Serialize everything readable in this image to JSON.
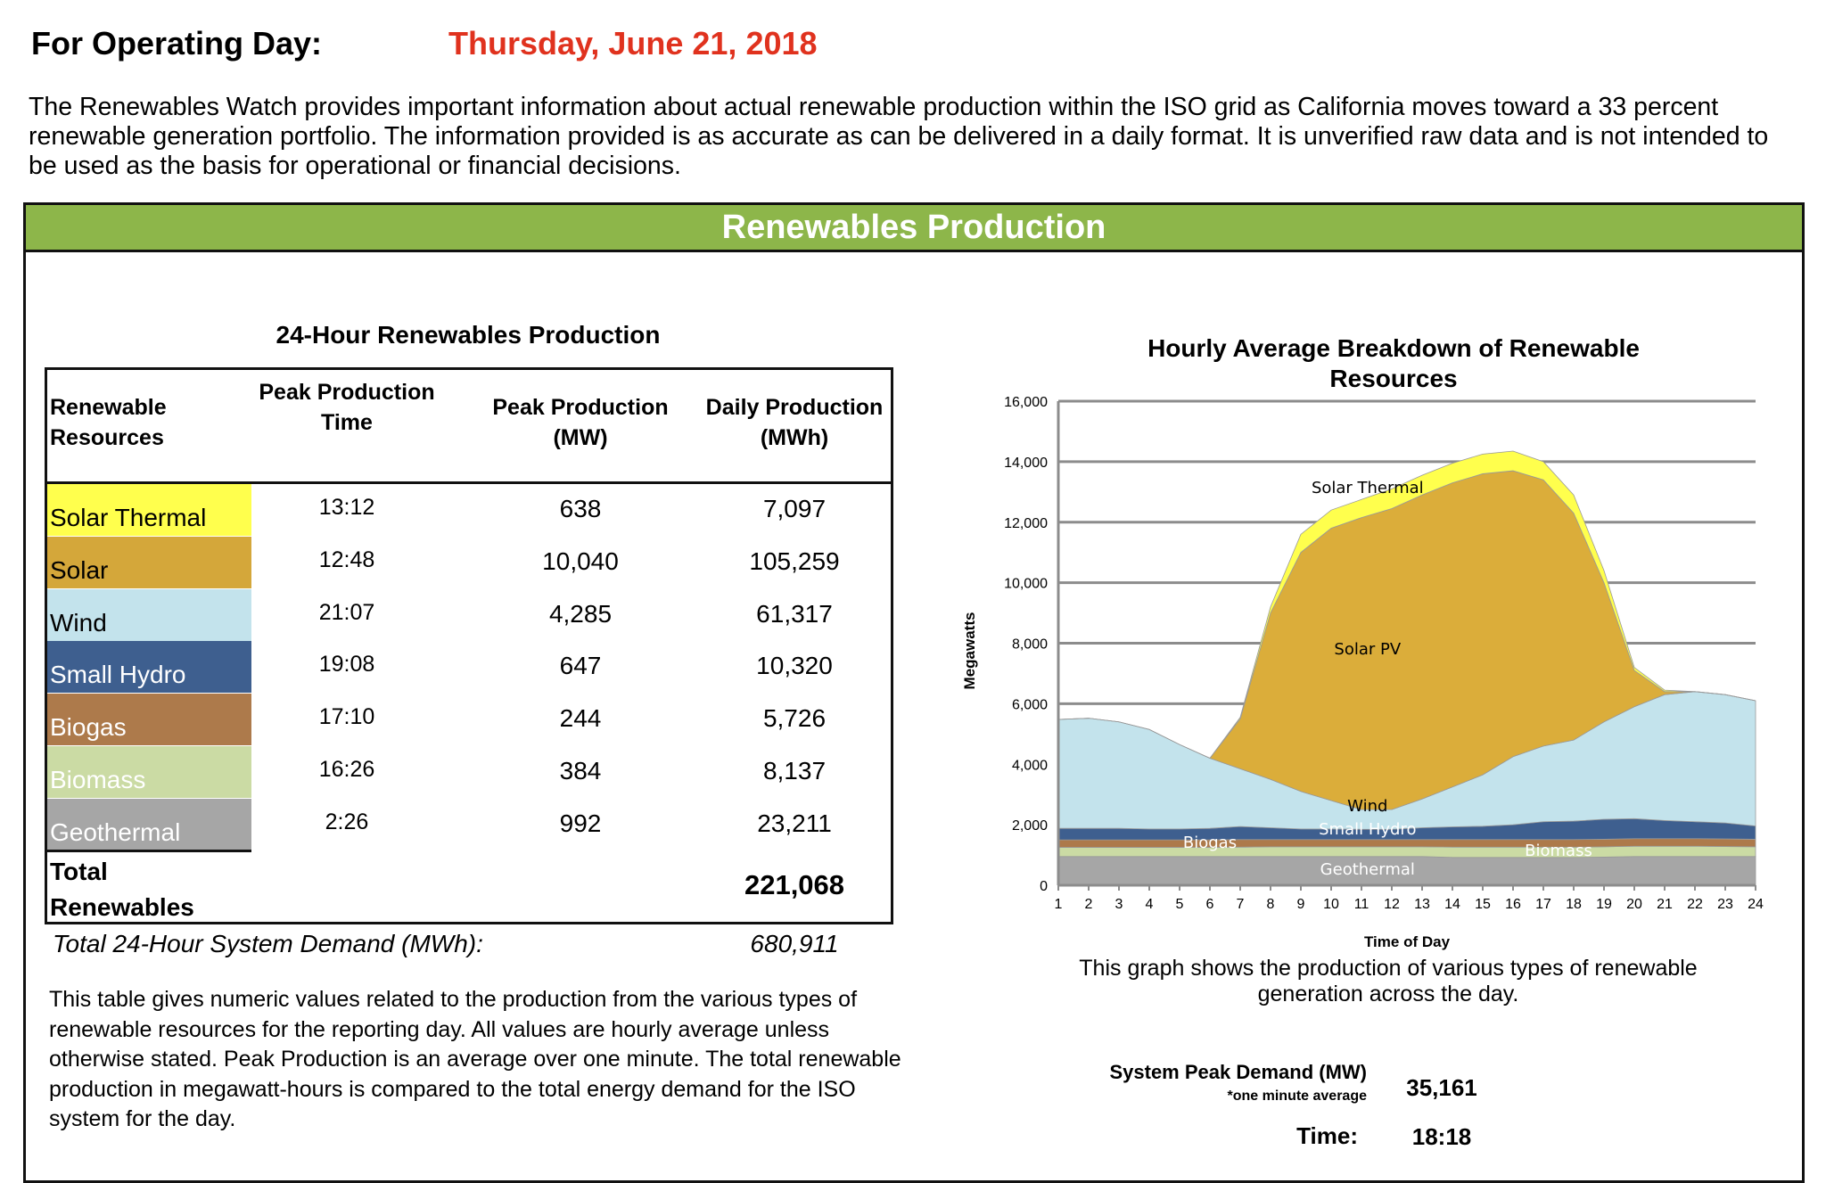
{
  "header": {
    "operating_day_label": "For Operating Day:",
    "operating_day_date": "Thursday, June 21, 2018",
    "intro": "The Renewables Watch provides important information about actual renewable production within the ISO grid as California moves toward a 33 percent renewable generation portfolio. The information provided is as accurate as can be delivered in a daily format.  It is unverified raw data and is not intended to be used as the basis for operational or financial decisions."
  },
  "banner": {
    "title": "Renewables Production",
    "color": "#8db64a"
  },
  "table": {
    "title": "24-Hour Renewables Production",
    "headers": [
      "Renewable Resources",
      "Peak Production Time",
      "Peak Production (MW)",
      "Daily Production (MWh)"
    ],
    "rows": [
      {
        "resource": "Solar Thermal",
        "peak_time": "13:12",
        "peak_mw": "638",
        "daily_mwh": "7,097",
        "color": "#ffff4d",
        "text_color": "#000000"
      },
      {
        "resource": "Solar",
        "peak_time": "12:48",
        "peak_mw": "10,040",
        "daily_mwh": "105,259",
        "color": "#d4a73a",
        "text_color": "#000000"
      },
      {
        "resource": "Wind",
        "peak_time": "21:07",
        "peak_mw": "4,285",
        "daily_mwh": "61,317",
        "color": "#c3e3ec",
        "text_color": "#000000"
      },
      {
        "resource": "Small Hydro",
        "peak_time": "19:08",
        "peak_mw": "647",
        "daily_mwh": "10,320",
        "color": "#3e5f8f",
        "text_color": "#ffffff"
      },
      {
        "resource": "Biogas",
        "peak_time": "17:10",
        "peak_mw": "244",
        "daily_mwh": "5,726",
        "color": "#ad7a4b",
        "text_color": "#ffffff"
      },
      {
        "resource": "Biomass",
        "peak_time": "16:26",
        "peak_mw": "384",
        "daily_mwh": "8,137",
        "color": "#cbdba4",
        "text_color": "#ffffff"
      },
      {
        "resource": "Geothermal",
        "peak_time": "2:26",
        "peak_mw": "992",
        "daily_mwh": "23,211",
        "color": "#a6a6a6",
        "text_color": "#ffffff"
      }
    ],
    "total_label": "Total Renewables",
    "total_value": "221,068",
    "demand_label": "Total 24-Hour System Demand (MWh):",
    "demand_value": "680,911",
    "description": "This table gives numeric values related to the production from the various types of renewable resources for the reporting day. All values are hourly average unless otherwise stated. Peak Production is an average over one minute. The total renewable production in megawatt-hours is compared to the total energy demand for the ISO system for the day."
  },
  "chart_data": {
    "type": "area",
    "stacked": true,
    "title": "Hourly Average Breakdown of Renewable Resources",
    "xlabel": "Time of Day",
    "ylabel": "Megawatts",
    "x": [
      1,
      2,
      3,
      4,
      5,
      6,
      7,
      8,
      9,
      10,
      11,
      12,
      13,
      14,
      15,
      16,
      17,
      18,
      19,
      20,
      21,
      22,
      23,
      24
    ],
    "ylim": [
      0,
      16000
    ],
    "yticks": [
      0,
      2000,
      4000,
      6000,
      8000,
      10000,
      12000,
      14000,
      16000
    ],
    "ytick_labels": [
      "0",
      "2,000",
      "4,000",
      "6,000",
      "8,000",
      "10,000",
      "12,000",
      "14,000",
      "16,000"
    ],
    "grid": true,
    "series": [
      {
        "name": "Geothermal",
        "color": "#a6a6a6",
        "label_color": "#ffffff",
        "values": [
          950,
          950,
          950,
          950,
          950,
          950,
          950,
          950,
          950,
          950,
          950,
          950,
          950,
          920,
          920,
          920,
          920,
          920,
          930,
          950,
          950,
          950,
          950,
          950
        ]
      },
      {
        "name": "Biomass",
        "color": "#cbdba4",
        "label_color": "#ffffff",
        "values": [
          300,
          300,
          300,
          300,
          300,
          300,
          310,
          320,
          320,
          320,
          320,
          320,
          320,
          340,
          340,
          340,
          340,
          340,
          340,
          340,
          340,
          340,
          330,
          320
        ]
      },
      {
        "name": "Biogas",
        "color": "#ad7a4b",
        "label_color": "#ffffff",
        "values": [
          250,
          250,
          250,
          250,
          250,
          250,
          250,
          240,
          240,
          240,
          240,
          240,
          240,
          250,
          250,
          250,
          250,
          250,
          250,
          250,
          250,
          250,
          250,
          250
        ]
      },
      {
        "name": "Small Hydro",
        "color": "#3e5f8f",
        "label_color": "#ffffff",
        "values": [
          380,
          380,
          380,
          360,
          360,
          380,
          430,
          390,
          350,
          350,
          340,
          340,
          390,
          420,
          440,
          490,
          590,
          610,
          660,
          660,
          600,
          560,
          530,
          440
        ]
      },
      {
        "name": "Wind",
        "color": "#c3e3ec",
        "label_color": "#000000",
        "values": [
          3600,
          3640,
          3520,
          3290,
          2790,
          2320,
          1910,
          1600,
          1240,
          940,
          650,
          650,
          950,
          1320,
          1700,
          2250,
          2500,
          2680,
          3220,
          3700,
          4160,
          4300,
          4240,
          4140
        ]
      },
      {
        "name": "Solar PV",
        "color": "#dbad3a",
        "label_color": "#000000",
        "values": [
          0,
          0,
          0,
          0,
          0,
          0,
          1650,
          5500,
          7900,
          9000,
          9650,
          9950,
          10050,
          10050,
          9950,
          9450,
          8800,
          7500,
          4600,
          1200,
          100,
          0,
          0,
          0
        ]
      },
      {
        "name": "Solar Thermal",
        "color": "#ffff4d",
        "label_color": "#000000",
        "values": [
          0,
          0,
          0,
          0,
          0,
          0,
          50,
          200,
          600,
          600,
          600,
          650,
          650,
          650,
          650,
          650,
          600,
          600,
          400,
          100,
          50,
          0,
          0,
          0
        ]
      }
    ]
  },
  "chart_caption": "This graph shows the production of various types of renewable generation across the day.",
  "peak": {
    "label": "System Peak Demand (MW)",
    "sublabel": "*one minute average",
    "value": "35,161",
    "time_label": "Time:",
    "time_value": "18:18"
  }
}
